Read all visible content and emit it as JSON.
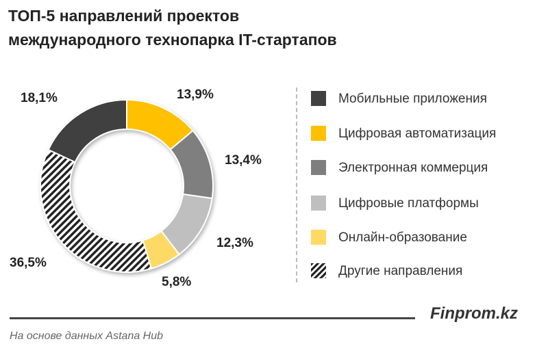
{
  "title_lines": [
    "ТОП-5 направлений проектов",
    "международного технопарка IT-стартапов"
  ],
  "chart_data": {
    "type": "pie",
    "donut": true,
    "start": "top, clockwise",
    "slices": [
      {
        "label": "Цифровая автоматизация",
        "value": 13.9,
        "text": "13,9%",
        "color": "#FFC000"
      },
      {
        "label": "Электронная коммерция",
        "value": 13.4,
        "text": "13,4%",
        "color": "#7F7F7F"
      },
      {
        "label": "Цифровые платформы",
        "value": 12.3,
        "text": "12,3%",
        "color": "#BFBFBF"
      },
      {
        "label": "Онлайн-образование",
        "value": 5.8,
        "text": "5,8%",
        "color": "#FFD966"
      },
      {
        "label": "Другие направления",
        "value": 36.5,
        "text": "36,5%",
        "color": "hatched"
      },
      {
        "label": "Мобильные приложения",
        "value": 18.1,
        "text": "18,1%",
        "color": "#404040"
      }
    ],
    "legend_order": [
      {
        "label": "Мобильные приложения",
        "color": "#404040"
      },
      {
        "label": "Цифровая автоматизация",
        "color": "#FFC000"
      },
      {
        "label": "Электронная коммерция",
        "color": "#7F7F7F"
      },
      {
        "label": "Цифровые платформы",
        "color": "#BFBFBF"
      },
      {
        "label": "Онлайн-образование",
        "color": "#FFD966"
      },
      {
        "label": "Другие направления",
        "color": "hatched"
      }
    ],
    "legend_placement": "right"
  },
  "brand": "Finprom.kz",
  "source": "На основе данных Astana Hub"
}
